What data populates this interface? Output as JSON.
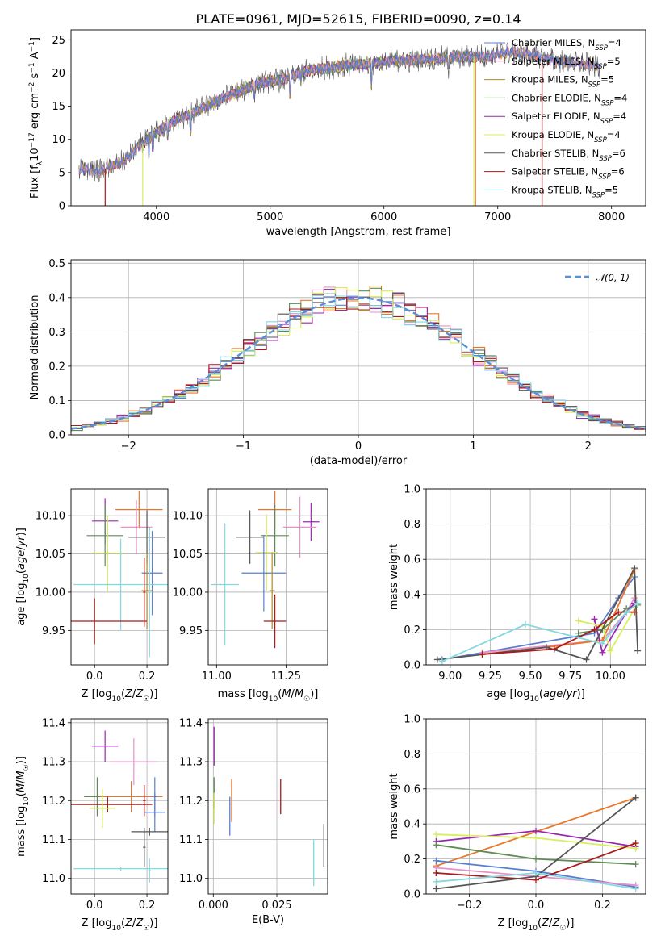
{
  "title": "PLATE=0961, MJD=52615, FIBERID=0090, z=0.14",
  "colors": {
    "chabrier_miles": "#5a7fd0",
    "salpeter_miles": "#e890c8",
    "kroupa_miles": "#b08a2e",
    "chabrier_elodie": "#5e8a55",
    "salpeter_elodie": "#9b27b0",
    "kroupa_elodie": "#d8ee5a",
    "chabrier_stelib": "#555555",
    "salpeter_stelib": "#aa1a1a",
    "kroupa_stelib": "#86d8e0",
    "extra_orange": "#e8772a",
    "gauss": "#5b8ed6"
  },
  "chart_data": [
    {
      "id": "spectrum",
      "type": "line",
      "title": "PLATE=0961, MJD=52615, FIBERID=0090, z=0.14",
      "xlabel": "wavelength [Angstrom, rest frame]",
      "ylabel": "Flux [f_λ 10^-17 erg cm^-2 s^-1 A^-1]",
      "xlim": [
        3250,
        8300
      ],
      "ylim": [
        0,
        26.5
      ],
      "xticks": [
        4000,
        5000,
        6000,
        7000,
        8000
      ],
      "yticks": [
        0,
        5,
        10,
        15,
        20,
        25
      ],
      "grid": false,
      "legend_position": "upper right",
      "legend": [
        {
          "base": "Chabrier MILES, N",
          "sub": "SSP",
          "value": "=4"
        },
        {
          "base": "Salpeter MILES, N",
          "sub": "SSP",
          "value": "=5"
        },
        {
          "base": "Kroupa MILES, N",
          "sub": "SSP",
          "value": "=5"
        },
        {
          "base": "Chabrier ELODIE, N",
          "sub": "SSP",
          "value": "=4"
        },
        {
          "base": "Salpeter ELODIE, N",
          "sub": "SSP",
          "value": "=4"
        },
        {
          "base": "Kroupa ELODIE, N",
          "sub": "SSP",
          "value": "=4"
        },
        {
          "base": "Chabrier STELIB, N",
          "sub": "SSP",
          "value": "=6"
        },
        {
          "base": "Salpeter STELIB, N",
          "sub": "SSP",
          "value": "=6"
        },
        {
          "base": "Kroupa STELIB, N",
          "sub": "SSP",
          "value": "=5"
        }
      ],
      "continuum": {
        "x": [
          3320,
          3500,
          3700,
          3850,
          4000,
          4150,
          4300,
          4500,
          4700,
          4900,
          5100,
          5300,
          5500,
          5700,
          5900,
          6100,
          6300,
          6500,
          6700,
          6900,
          7100,
          7300,
          7500,
          7700,
          7900
        ],
        "y": [
          5.5,
          5.3,
          6.5,
          9.0,
          11.0,
          12.8,
          13.8,
          15.5,
          17.0,
          18.5,
          19.0,
          20.2,
          20.8,
          21.2,
          21.4,
          21.8,
          22.0,
          22.2,
          22.4,
          22.5,
          23.2,
          22.8,
          21.8,
          21.5,
          21.0
        ]
      }
    },
    {
      "id": "residuals",
      "type": "histogram",
      "xlabel": "(data-model)/error",
      "ylabel": "Normed distribution",
      "xlim": [
        -2.5,
        2.5
      ],
      "ylim": [
        0,
        0.51
      ],
      "xticks": [
        -2,
        -1,
        0,
        1,
        2
      ],
      "yticks": [
        0.0,
        0.1,
        0.2,
        0.3,
        0.4,
        0.5
      ],
      "grid": true,
      "legend_position": "upper right",
      "gauss_label": "𝒩(0, 1)",
      "bin_width": 0.1
    },
    {
      "id": "z-vs-age",
      "type": "errorbar",
      "xlabel": "Z [log10(Z/Z☉)]",
      "ylabel": "age [log10(age/yr)]",
      "xlim": [
        -0.09,
        0.28
      ],
      "ylim": [
        9.905,
        10.135
      ],
      "xticks": [
        0.0,
        0.2
      ],
      "yticks": [
        9.95,
        10.0,
        10.05,
        10.1
      ],
      "grid": true,
      "points": [
        {
          "series": "salpeter_elodie",
          "x": 0.04,
          "y": 10.093,
          "xerr": 0.05,
          "yerr": 0.03
        },
        {
          "series": "extra_orange",
          "x": 0.17,
          "y": 10.108,
          "xerr": 0.09,
          "yerr": 0.025
        },
        {
          "series": "salpeter_miles",
          "x": 0.16,
          "y": 10.085,
          "xerr": 0.06,
          "yerr": 0.035
        },
        {
          "series": "chabrier_elodie",
          "x": 0.04,
          "y": 10.074,
          "xerr": 0.07,
          "yerr": 0.04
        },
        {
          "series": "chabrier_stelib",
          "x": 0.2,
          "y": 10.072,
          "xerr": 0.07,
          "yerr": 0.035
        },
        {
          "series": "kroupa_elodie",
          "x": 0.05,
          "y": 10.051,
          "xerr": 0.06,
          "yerr": 0.05
        },
        {
          "series": "chabrier_miles",
          "x": 0.22,
          "y": 10.025,
          "xerr": 0.04,
          "yerr": 0.055
        },
        {
          "series": "kroupa_stelib",
          "x": 0.1,
          "y": 10.01,
          "xerr": 0.18,
          "yerr": 0.06
        },
        {
          "series": "kroupa_miles",
          "x": 0.2,
          "y": 10.002,
          "xerr": 0.02,
          "yerr": 0.05
        },
        {
          "series": "kroupa_stelib",
          "x": 0.21,
          "y": 10.0,
          "xerr": 0.01,
          "yerr": 0.085
        },
        {
          "series": "salpeter_stelib",
          "x": 0.0,
          "y": 9.962,
          "xerr": 0.2,
          "yerr": 0.03
        },
        {
          "series": "salpeter_stelib",
          "x": 0.19,
          "y": 10.0,
          "xerr": 0.005,
          "yerr": 0.045
        }
      ]
    },
    {
      "id": "mass-vs-age",
      "type": "errorbar",
      "xlabel": "mass [log10(M/M☉)]",
      "ylabel": "",
      "xlim": [
        10.97,
        11.4
      ],
      "ylim": [
        9.905,
        10.135
      ],
      "xticks": [
        11.0,
        11.25
      ],
      "yticks": [
        9.95,
        10.0,
        10.05,
        10.1
      ],
      "grid": true,
      "points": [
        {
          "series": "salpeter_elodie",
          "x": 11.34,
          "y": 10.092,
          "xerr": 0.03,
          "yerr": 0.025
        },
        {
          "series": "extra_orange",
          "x": 11.21,
          "y": 10.108,
          "xerr": 0.06,
          "yerr": 0.025
        },
        {
          "series": "salpeter_miles",
          "x": 11.3,
          "y": 10.085,
          "xerr": 0.06,
          "yerr": 0.04
        },
        {
          "series": "chabrier_elodie",
          "x": 11.21,
          "y": 10.074,
          "xerr": 0.05,
          "yerr": 0.04
        },
        {
          "series": "chabrier_stelib",
          "x": 11.12,
          "y": 10.072,
          "xerr": 0.05,
          "yerr": 0.035
        },
        {
          "series": "kroupa_elodie",
          "x": 11.18,
          "y": 10.052,
          "xerr": 0.04,
          "yerr": 0.05
        },
        {
          "series": "chabrier_miles",
          "x": 11.17,
          "y": 10.025,
          "xerr": 0.08,
          "yerr": 0.05
        },
        {
          "series": "kroupa_stelib",
          "x": 11.03,
          "y": 10.01,
          "xerr": 0.05,
          "yerr": 0.08
        },
        {
          "series": "kroupa_miles",
          "x": 11.2,
          "y": 10.002,
          "xerr": 0.01,
          "yerr": 0.05
        },
        {
          "series": "salpeter_stelib",
          "x": 11.21,
          "y": 9.962,
          "xerr": 0.04,
          "yerr": 0.035
        }
      ]
    },
    {
      "id": "age-vs-weight",
      "type": "line",
      "xlabel": "age [log10(age/yr)]",
      "ylabel": "mass weight",
      "xlim": [
        8.85,
        10.22
      ],
      "ylim": [
        0,
        1.0
      ],
      "xticks": [
        9.0,
        9.25,
        9.5,
        9.75,
        10.0
      ],
      "yticks": [
        0.0,
        0.2,
        0.4,
        0.6,
        0.8,
        1.0
      ],
      "grid": true,
      "series": [
        {
          "name": "chabrier_miles",
          "x": [
            8.95,
            9.9,
            10.05,
            10.15
          ],
          "y": [
            0.03,
            0.18,
            0.38,
            0.5
          ]
        },
        {
          "name": "salpeter_miles",
          "x": [
            9.2,
            9.95,
            10.1,
            10.15
          ],
          "y": [
            0.07,
            0.14,
            0.3,
            0.38
          ]
        },
        {
          "name": "extra_orange",
          "x": [
            9.2,
            9.6,
            9.95,
            10.15
          ],
          "y": [
            0.06,
            0.1,
            0.14,
            0.54
          ]
        },
        {
          "name": "chabrier_elodie",
          "x": [
            9.8,
            9.95,
            10.1,
            10.17
          ],
          "y": [
            0.18,
            0.2,
            0.32,
            0.34
          ]
        },
        {
          "name": "salpeter_elodie",
          "x": [
            9.9,
            9.95,
            10.1,
            10.15
          ],
          "y": [
            0.26,
            0.07,
            0.3,
            0.35
          ]
        },
        {
          "name": "kroupa_elodie",
          "x": [
            9.8,
            9.95,
            10.0,
            10.17
          ],
          "y": [
            0.25,
            0.22,
            0.08,
            0.35
          ]
        },
        {
          "name": "chabrier_stelib",
          "x": [
            8.92,
            9.6,
            9.85,
            10.15,
            10.17
          ],
          "y": [
            0.03,
            0.1,
            0.03,
            0.55,
            0.08
          ]
        },
        {
          "name": "salpeter_stelib",
          "x": [
            9.2,
            9.65,
            9.9,
            10.05,
            10.15
          ],
          "y": [
            0.06,
            0.09,
            0.2,
            0.3,
            0.3
          ]
        },
        {
          "name": "kroupa_stelib",
          "x": [
            8.95,
            9.47,
            9.95,
            10.1,
            10.17
          ],
          "y": [
            0.02,
            0.23,
            0.12,
            0.3,
            0.35
          ]
        }
      ]
    },
    {
      "id": "z-vs-mass",
      "type": "errorbar",
      "xlabel": "Z [log10(Z/Z☉)]",
      "ylabel": "mass [log10(M/M☉)]",
      "xlim": [
        -0.09,
        0.28
      ],
      "ylim": [
        10.96,
        11.41
      ],
      "xticks": [
        0.0,
        0.2
      ],
      "yticks": [
        11.0,
        11.1,
        11.2,
        11.3,
        11.4
      ],
      "grid": true,
      "points": [
        {
          "series": "salpeter_elodie",
          "x": 0.04,
          "y": 11.34,
          "xerr": 0.05,
          "yerr": 0.04
        },
        {
          "series": "salpeter_miles",
          "x": 0.15,
          "y": 11.3,
          "xerr": 0.09,
          "yerr": 0.06
        },
        {
          "series": "chabrier_elodie",
          "x": 0.01,
          "y": 11.21,
          "xerr": 0.05,
          "yerr": 0.05
        },
        {
          "series": "extra_orange",
          "x": 0.14,
          "y": 11.21,
          "xerr": 0.12,
          "yerr": 0.04
        },
        {
          "series": "chabrier_miles",
          "x": 0.23,
          "y": 11.21,
          "xerr": 0.01,
          "yerr": 0.05
        },
        {
          "series": "salpeter_stelib",
          "x": 0.05,
          "y": 11.19,
          "xerr": 0.17,
          "yerr": 0.02
        },
        {
          "series": "kroupa_elodie",
          "x": 0.03,
          "y": 11.18,
          "xerr": 0.05,
          "yerr": 0.05
        },
        {
          "series": "salpeter_stelib",
          "x": 0.19,
          "y": 11.2,
          "xerr": 0.005,
          "yerr": 0.04
        },
        {
          "series": "chabrier_miles",
          "x": 0.23,
          "y": 11.17,
          "xerr": 0.04,
          "yerr": 0.05
        },
        {
          "series": "chabrier_stelib",
          "x": 0.19,
          "y": 11.08,
          "xerr": 0.005,
          "yerr": 0.05
        },
        {
          "series": "chabrier_stelib",
          "x": 0.21,
          "y": 11.12,
          "xerr": 0.07,
          "yerr": 0.01
        },
        {
          "series": "kroupa_stelib",
          "x": 0.1,
          "y": 11.025,
          "xerr": 0.18,
          "yerr": 0.005
        },
        {
          "series": "kroupa_stelib",
          "x": 0.21,
          "y": 11.02,
          "xerr": 0.005,
          "yerr": 0.03
        }
      ]
    },
    {
      "id": "ebv-vs-mass",
      "type": "errorbar",
      "xlabel": "E(B-V)",
      "ylabel": "",
      "xlim": [
        -0.002,
        0.045
      ],
      "ylim": [
        10.96,
        11.41
      ],
      "xticks": [
        0.0,
        0.025
      ],
      "yticks": [
        11.0,
        11.1,
        11.2,
        11.3,
        11.4
      ],
      "grid": true,
      "points": [
        {
          "series": "salpeter_elodie",
          "x": 0.0003,
          "y": 11.34,
          "xerr": 0.0,
          "yerr": 0.05
        },
        {
          "series": "chabrier_elodie",
          "x": 0.0003,
          "y": 11.22,
          "xerr": 0.0,
          "yerr": 0.04
        },
        {
          "series": "kroupa_elodie",
          "x": 0.0003,
          "y": 11.18,
          "xerr": 0.0,
          "yerr": 0.04
        },
        {
          "series": "chabrier_miles",
          "x": 0.0065,
          "y": 11.16,
          "xerr": 0.0,
          "yerr": 0.05
        },
        {
          "series": "extra_orange",
          "x": 0.0072,
          "y": 11.2,
          "xerr": 0.0,
          "yerr": 0.055
        },
        {
          "series": "salpeter_stelib",
          "x": 0.0265,
          "y": 11.21,
          "xerr": 0.0,
          "yerr": 0.045
        },
        {
          "series": "kroupa_stelib",
          "x": 0.0395,
          "y": 11.04,
          "xerr": 0.0,
          "yerr": 0.06
        },
        {
          "series": "chabrier_stelib",
          "x": 0.0435,
          "y": 11.085,
          "xerr": 0.0,
          "yerr": 0.055
        }
      ]
    },
    {
      "id": "z-vs-weight",
      "type": "line",
      "xlabel": "Z [log10(Z/Z☉)]",
      "ylabel": "mass weight",
      "xlim": [
        -0.33,
        0.33
      ],
      "ylim": [
        0,
        1.0
      ],
      "xticks": [
        -0.2,
        0.0,
        0.2
      ],
      "yticks": [
        0.0,
        0.2,
        0.4,
        0.6,
        0.8,
        1.0
      ],
      "grid": true,
      "series": [
        {
          "name": "extra_orange",
          "x": [
            -0.3,
            0.3
          ],
          "y": [
            0.16,
            0.55
          ]
        },
        {
          "name": "salpeter_elodie",
          "x": [
            -0.3,
            0.0,
            0.3
          ],
          "y": [
            0.3,
            0.36,
            0.27
          ]
        },
        {
          "name": "kroupa_elodie",
          "x": [
            -0.3,
            0.0,
            0.3
          ],
          "y": [
            0.34,
            0.32,
            0.26
          ]
        },
        {
          "name": "chabrier_elodie",
          "x": [
            -0.3,
            0.0,
            0.3
          ],
          "y": [
            0.28,
            0.2,
            0.17
          ]
        },
        {
          "name": "chabrier_miles",
          "x": [
            -0.3,
            0.0,
            0.3
          ],
          "y": [
            0.19,
            0.13,
            0.04
          ]
        },
        {
          "name": "salpeter_miles",
          "x": [
            -0.3,
            0.0,
            0.3
          ],
          "y": [
            0.15,
            0.1,
            0.05
          ]
        },
        {
          "name": "salpeter_stelib",
          "x": [
            -0.3,
            0.0,
            0.3
          ],
          "y": [
            0.12,
            0.08,
            0.29
          ]
        },
        {
          "name": "chabrier_stelib",
          "x": [
            -0.3,
            0.0,
            0.3
          ],
          "y": [
            0.03,
            0.1,
            0.55
          ]
        },
        {
          "name": "kroupa_stelib",
          "x": [
            -0.3,
            0.0,
            0.3
          ],
          "y": [
            0.07,
            0.12,
            0.03
          ]
        }
      ]
    }
  ]
}
